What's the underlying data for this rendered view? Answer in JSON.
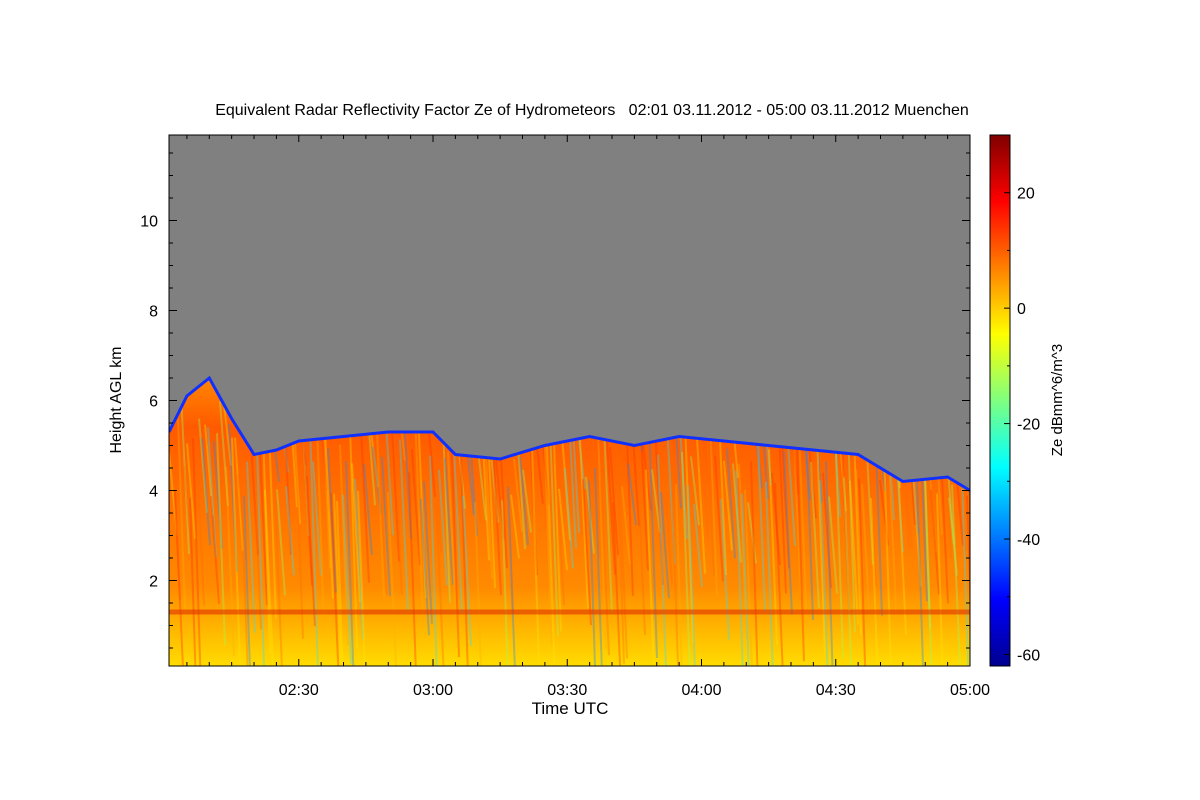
{
  "chart_data": {
    "type": "heatmap",
    "title": "Equivalent Radar Reflectivity Factor Ze of Hydrometeors   02:01 03.11.2012 - 05:00 03.11.2012 Muenchen",
    "xlabel": "Time UTC",
    "ylabel": "Height AGL km",
    "colorbar_label": "Ze dBmm^6/m^3",
    "x_start": "02:01",
    "x_end": "05:00",
    "x_ticks": [
      "02:30",
      "03:00",
      "03:30",
      "04:00",
      "04:30",
      "05:00"
    ],
    "x_tick_minutes": [
      150,
      180,
      210,
      240,
      270,
      300
    ],
    "y_ticks": [
      "2",
      "4",
      "6",
      "8",
      "10"
    ],
    "y_tick_values": [
      2,
      4,
      6,
      8,
      10
    ],
    "ylim": [
      0.1,
      11.9
    ],
    "colorbar_ticks": [
      "20",
      "0",
      "-20",
      "-40",
      "-60"
    ],
    "colorbar_tick_values": [
      20,
      0,
      -20,
      -40,
      -60
    ],
    "zlim": [
      -62,
      30
    ],
    "colormap": "jet",
    "no_signal_color": "#808080",
    "grid": false,
    "echo_top_km": [
      {
        "time": "02:01",
        "top": 5.3
      },
      {
        "time": "02:05",
        "top": 6.1
      },
      {
        "time": "02:10",
        "top": 6.5
      },
      {
        "time": "02:15",
        "top": 5.6
      },
      {
        "time": "02:20",
        "top": 4.8
      },
      {
        "time": "02:25",
        "top": 4.9
      },
      {
        "time": "02:30",
        "top": 5.1
      },
      {
        "time": "02:40",
        "top": 5.2
      },
      {
        "time": "02:50",
        "top": 5.3
      },
      {
        "time": "03:00",
        "top": 5.3
      },
      {
        "time": "03:05",
        "top": 4.8
      },
      {
        "time": "03:15",
        "top": 4.7
      },
      {
        "time": "03:25",
        "top": 5.0
      },
      {
        "time": "03:35",
        "top": 5.2
      },
      {
        "time": "03:45",
        "top": 5.0
      },
      {
        "time": "03:55",
        "top": 5.2
      },
      {
        "time": "04:05",
        "top": 5.1
      },
      {
        "time": "04:15",
        "top": 5.0
      },
      {
        "time": "04:25",
        "top": 4.9
      },
      {
        "time": "04:35",
        "top": 4.8
      },
      {
        "time": "04:45",
        "top": 4.2
      },
      {
        "time": "04:55",
        "top": 4.3
      },
      {
        "time": "05:00",
        "top": 4.0
      }
    ],
    "bright_band_km": 1.3
  }
}
